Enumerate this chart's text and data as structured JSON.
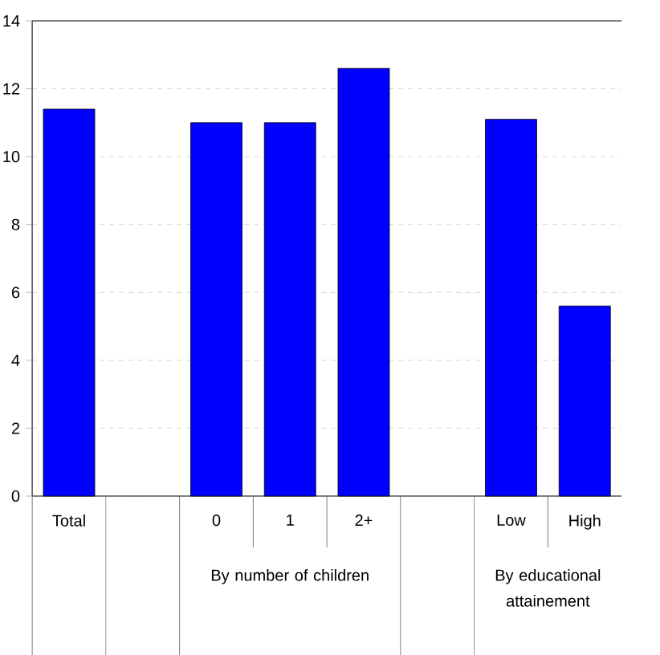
{
  "chart_data": {
    "type": "bar",
    "categories": [
      "Total",
      null,
      "0",
      "1",
      "2+",
      null,
      "Low",
      "High"
    ],
    "values": [
      11.4,
      null,
      11.0,
      11.0,
      12.6,
      null,
      11.1,
      5.6
    ],
    "color": "#0000ff",
    "ylim": [
      0,
      14
    ],
    "yticks": [
      0,
      2,
      4,
      6,
      8,
      10,
      12,
      14
    ],
    "grid": "y",
    "annotations": [
      "By number of children",
      "By educational attainement"
    ]
  }
}
